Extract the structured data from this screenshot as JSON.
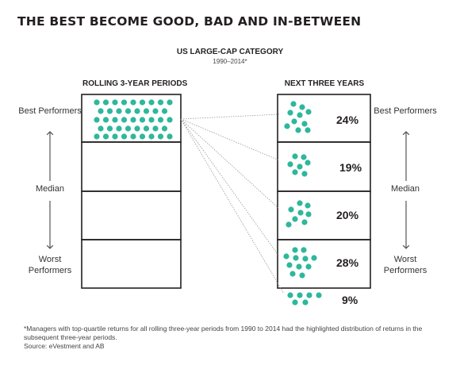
{
  "title": "THE BEST BECOME GOOD, BAD AND IN-BETWEEN",
  "subtitle": "US LARGE-CAP CATEGORY",
  "period": "1990–2014*",
  "left_panel": {
    "header": "ROLLING 3-YEAR PERIODS",
    "labels": {
      "best": "Best Performers",
      "median": "Median",
      "worst": "Worst Performers"
    }
  },
  "right_panel": {
    "header": "NEXT THREE YEARS",
    "labels": {
      "best": "Best Performers",
      "median": "Median",
      "worst": "Worst Performers"
    },
    "outcomes": [
      {
        "percent": "24%"
      },
      {
        "percent": "19%"
      },
      {
        "percent": "20%"
      },
      {
        "percent": "28%"
      },
      {
        "percent": "9%"
      }
    ]
  },
  "footnote": "*Managers with top-quartile returns for all rolling three-year periods from 1990 to 2014 had the highlighted distribution of returns in the subsequent three-year periods.",
  "source": "Source: eVestment and AB",
  "colors": {
    "dot": "#2fb79c",
    "box": "#231f20",
    "arrow": "#555555",
    "connector": "#999999"
  }
}
